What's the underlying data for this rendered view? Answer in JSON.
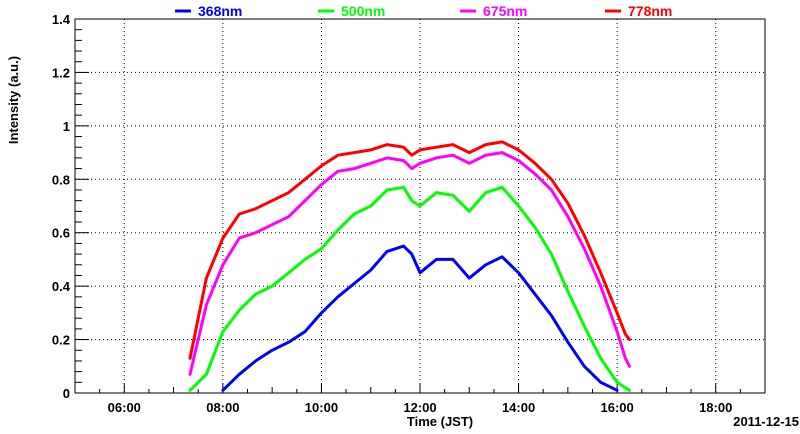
{
  "chart_data": {
    "type": "line",
    "xlabel": "Time (JST)",
    "ylabel": "Intensity (a.u.)",
    "date_label": "2011-12-15",
    "x_ticks": [
      "06:00",
      "08:00",
      "10:00",
      "12:00",
      "14:00",
      "16:00",
      "18:00"
    ],
    "y_ticks": [
      "0",
      "0.2",
      "0.4",
      "0.6",
      "0.8",
      "1",
      "1.2",
      "1.4"
    ],
    "xlim": [
      "05:00",
      "19:00"
    ],
    "ylim": [
      0,
      1.4
    ],
    "grid": true,
    "legend_position": "top",
    "x": [
      "07:20",
      "07:40",
      "08:00",
      "08:20",
      "08:40",
      "09:00",
      "09:20",
      "09:40",
      "10:00",
      "10:20",
      "10:40",
      "11:00",
      "11:20",
      "11:40",
      "11:50",
      "12:00",
      "12:20",
      "12:40",
      "13:00",
      "13:20",
      "13:40",
      "14:00",
      "14:20",
      "14:40",
      "15:00",
      "15:20",
      "15:40",
      "16:00",
      "16:10",
      "16:15"
    ],
    "series": [
      {
        "name": "368nm",
        "color": "#0000ff",
        "values": [
          null,
          null,
          0.01,
          0.07,
          0.12,
          0.16,
          0.19,
          0.23,
          0.3,
          0.36,
          0.41,
          0.46,
          0.53,
          0.55,
          0.52,
          0.45,
          0.5,
          0.5,
          0.43,
          0.48,
          0.51,
          0.45,
          0.37,
          0.29,
          0.19,
          0.1,
          0.04,
          0.01,
          null,
          null
        ]
      },
      {
        "name": "500nm",
        "color": "#00ff00",
        "values": [
          0.01,
          0.07,
          0.23,
          0.31,
          0.37,
          0.4,
          0.45,
          0.5,
          0.54,
          0.61,
          0.67,
          0.7,
          0.76,
          0.77,
          0.72,
          0.7,
          0.75,
          0.74,
          0.68,
          0.75,
          0.77,
          0.7,
          0.62,
          0.52,
          0.38,
          0.25,
          0.13,
          0.04,
          0.02,
          0.01
        ]
      },
      {
        "name": "675nm",
        "color": "#ff00ff",
        "values": [
          0.07,
          0.33,
          0.48,
          0.58,
          0.6,
          0.63,
          0.66,
          0.72,
          0.78,
          0.83,
          0.84,
          0.86,
          0.88,
          0.87,
          0.84,
          0.86,
          0.88,
          0.89,
          0.86,
          0.89,
          0.9,
          0.87,
          0.82,
          0.76,
          0.66,
          0.54,
          0.4,
          0.23,
          0.13,
          0.1
        ]
      },
      {
        "name": "778nm",
        "color": "#ff0000",
        "values": [
          0.13,
          0.43,
          0.58,
          0.67,
          0.69,
          0.72,
          0.75,
          0.8,
          0.85,
          0.89,
          0.9,
          0.91,
          0.93,
          0.92,
          0.89,
          0.91,
          0.92,
          0.93,
          0.9,
          0.93,
          0.94,
          0.91,
          0.86,
          0.8,
          0.71,
          0.59,
          0.45,
          0.3,
          0.22,
          0.2
        ]
      }
    ]
  }
}
